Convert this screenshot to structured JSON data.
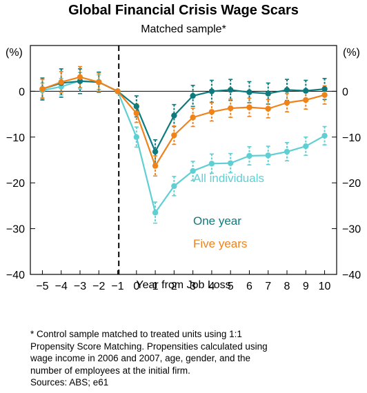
{
  "chart_data": {
    "type": "line",
    "title": "Global Financial Crisis Wage Scars",
    "subtitle": "Matched sample*",
    "xlabel": "Year from Job Loss",
    "ylabel_left": "(%)",
    "ylabel_right": "(%)",
    "ylim": [
      -40,
      10
    ],
    "yticks": [
      0,
      -10,
      -20,
      -30,
      -40
    ],
    "x": [
      -5,
      -4,
      -3,
      -2,
      -1,
      0,
      1,
      2,
      3,
      4,
      5,
      6,
      7,
      8,
      9,
      10
    ],
    "reference_line_x": -1,
    "series": [
      {
        "name": "All individuals",
        "color": "#5fcfd3",
        "values": [
          0.2,
          1.0,
          2.3,
          2.0,
          0,
          -10.0,
          -26.5,
          -20.7,
          -17.4,
          -15.8,
          -15.7,
          -14.1,
          -14.0,
          -13.2,
          -12.0,
          -9.7
        ],
        "errors": [
          1.6,
          1.8,
          1.8,
          1.6,
          0,
          2.2,
          2.3,
          2.1,
          2.1,
          2.1,
          2.1,
          2.0,
          2.0,
          2.0,
          2.0,
          2.0
        ]
      },
      {
        "name": "One year",
        "color": "#0e7a7e",
        "values": [
          0.5,
          1.8,
          2.2,
          2.0,
          0,
          -3.3,
          -13.2,
          -5.3,
          -1.0,
          0.0,
          0.3,
          -0.2,
          -0.5,
          0.3,
          0.1,
          0.5
        ],
        "errors": [
          2.4,
          3.1,
          2.7,
          2.2,
          0,
          2.3,
          2.6,
          2.4,
          2.3,
          2.4,
          2.3,
          2.3,
          2.3,
          2.3,
          2.3,
          2.3
        ]
      },
      {
        "name": "Five years",
        "color": "#f0821a",
        "values": [
          0.5,
          2.0,
          3.1,
          2.0,
          0,
          -4.8,
          -16.3,
          -9.6,
          -5.7,
          -4.5,
          -3.7,
          -3.5,
          -3.8,
          -2.5,
          -1.9,
          -0.8
        ],
        "errors": [
          2.1,
          2.3,
          2.3,
          2.0,
          0,
          2.0,
          2.2,
          2.0,
          2.0,
          2.0,
          2.0,
          2.0,
          2.0,
          2.0,
          2.0,
          2.0
        ]
      }
    ]
  },
  "footnote": [
    "* Control sample matched to treated units using 1:1",
    "Propensity Score Matching. Propensities calculated using",
    "wage income in 2006 and 2007, age, gender, and the",
    "number of employees at the initial firm.",
    "Sources: ABS; e61"
  ]
}
